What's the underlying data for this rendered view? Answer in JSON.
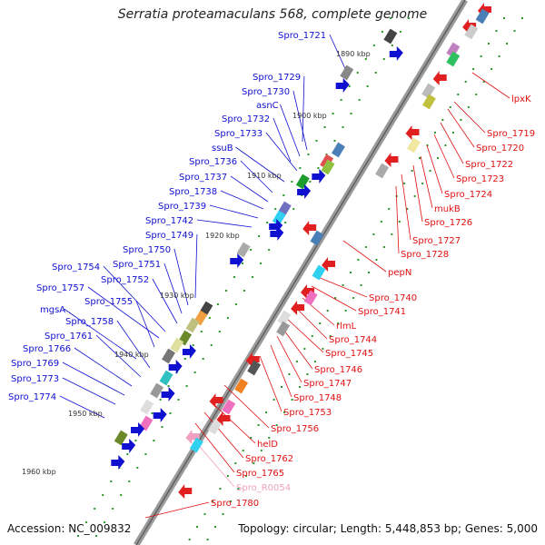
{
  "title": "Serratia proteamaculans 568, complete genome",
  "footer": {
    "accession": "Accession: NC_009832",
    "topology": "Topology: circular; Length: 5,448,853 bp; Genes: 5,000"
  },
  "colors": {
    "plus_label": "#1010d0",
    "minus_label": "#e01010",
    "rna_label": "#f0a0c0",
    "backbone": "#9a9a9a",
    "tick_dot": "#2a9a2a"
  },
  "scale_labels": [
    "1890 kbp",
    "1900 kbp",
    "1910 kbp",
    "1920 kbp",
    "1930 kbp",
    "1940 kbp",
    "1950 kbp",
    "1960 kbp"
  ],
  "plus_labels": [
    "Spro_1721",
    "Spro_1729",
    "Spro_1730",
    "asnC",
    "Spro_1732",
    "Spro_1733",
    "ssuB",
    "Spro_1736",
    "Spro_1737",
    "Spro_1738",
    "Spro_1739",
    "Spro_1742",
    "Spro_1749",
    "Spro_1750",
    "Spro_1751",
    "Spro_1752",
    "Spro_1754",
    "Spro_1757",
    "Spro_1755",
    "mgsA",
    "Spro_1758",
    "Spro_1761",
    "Spro_1766",
    "Spro_1769",
    "Spro_1773",
    "Spro_1774"
  ],
  "minus_labels": [
    "lpxK",
    "Spro_1719",
    "Spro_1720",
    "Spro_1722",
    "Spro_1723",
    "Spro_1724",
    "mukB",
    "Spro_1726",
    "Spro_1727",
    "Spro_1728",
    "pepN",
    "Spro_1740",
    "Spro_1741",
    "rlmL",
    "Spro_1744",
    "Spro_1745",
    "Spro_1746",
    "Spro_1747",
    "Spro_1748",
    "Spro_1753",
    "Spro_1756",
    "helD",
    "Spro_1762",
    "Spro_1765",
    "Spro_R0054",
    "Spro_1780"
  ]
}
